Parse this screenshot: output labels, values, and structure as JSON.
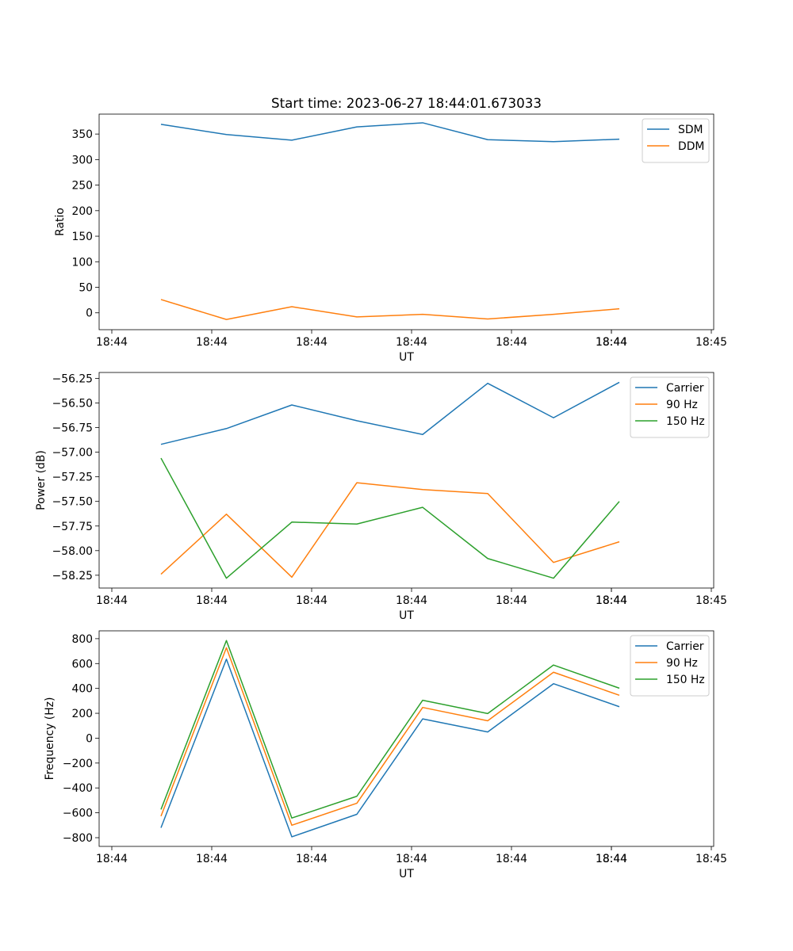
{
  "chart_data": [
    {
      "type": "line",
      "title": "Start time: 2023-06-27 18:44:01.673033",
      "xlabel": "UT",
      "ylabel": "Ratio",
      "x_tick_labels": [
        "18:44",
        "18:44",
        "18:44",
        "18:44",
        "18:44",
        "18:44",
        "18:44"
      ],
      "x_last_tick_label": "18:45",
      "y_ticks": [
        "0",
        "50",
        "100",
        "150",
        "200",
        "250",
        "300",
        "350"
      ],
      "y_tick_values": [
        0,
        50,
        100,
        150,
        200,
        250,
        300,
        350
      ],
      "ylim": [
        -33,
        389
      ],
      "legend": "top-right",
      "grid": false,
      "series": [
        {
          "name": "SDM",
          "color": "#1f77b4",
          "values": [
            369,
            349,
            338,
            364,
            372,
            339,
            335,
            340
          ]
        },
        {
          "name": "DDM",
          "color": "#ff7f0e",
          "values": [
            26,
            -13,
            12,
            -8,
            -3,
            -12,
            -3,
            8
          ]
        }
      ]
    },
    {
      "type": "line",
      "title": "",
      "xlabel": "UT",
      "ylabel": "Power (dB)",
      "x_tick_labels": [
        "18:44",
        "18:44",
        "18:44",
        "18:44",
        "18:44",
        "18:44",
        "18:44"
      ],
      "x_last_tick_label": "18:45",
      "y_ticks": [
        "−58.25",
        "−58.00",
        "−57.75",
        "−57.50",
        "−57.25",
        "−57.00",
        "−56.75",
        "−56.50",
        "−56.25"
      ],
      "y_tick_values": [
        -58.25,
        -58.0,
        -57.75,
        -57.5,
        -57.25,
        -57.0,
        -56.75,
        -56.5,
        -56.25
      ],
      "ylim": [
        -58.38,
        -56.19
      ],
      "legend": "top-right",
      "grid": false,
      "series": [
        {
          "name": "Carrier",
          "color": "#1f77b4",
          "values": [
            -56.92,
            -56.76,
            -56.52,
            -56.68,
            -56.82,
            -56.3,
            -56.65,
            -56.29
          ]
        },
        {
          "name": "90 Hz",
          "color": "#ff7f0e",
          "values": [
            -58.24,
            -57.63,
            -58.27,
            -57.31,
            -57.38,
            -57.42,
            -58.12,
            -57.91
          ]
        },
        {
          "name": "150 Hz",
          "color": "#2ca02c",
          "values": [
            -57.06,
            -58.28,
            -57.71,
            -57.73,
            -57.56,
            -58.08,
            -58.28,
            -57.5
          ]
        }
      ]
    },
    {
      "type": "line",
      "title": "",
      "xlabel": "UT",
      "ylabel": "Frequency (Hz)",
      "x_tick_labels": [
        "18:44",
        "18:44",
        "18:44",
        "18:44",
        "18:44",
        "18:44",
        "18:44"
      ],
      "x_last_tick_label": "18:45",
      "y_ticks": [
        "−800",
        "−600",
        "−400",
        "−200",
        "0",
        "200",
        "400",
        "600",
        "800"
      ],
      "y_tick_values": [
        -800,
        -600,
        -400,
        -200,
        0,
        200,
        400,
        600,
        800
      ],
      "ylim": [
        -870,
        863
      ],
      "legend": "top-right",
      "grid": false,
      "series": [
        {
          "name": "Carrier",
          "color": "#1f77b4",
          "values": [
            -720,
            635,
            -793,
            -612,
            155,
            50,
            438,
            253
          ]
        },
        {
          "name": "90 Hz",
          "color": "#ff7f0e",
          "values": [
            -627,
            727,
            -700,
            -523,
            247,
            140,
            530,
            345
          ]
        },
        {
          "name": "150 Hz",
          "color": "#2ca02c",
          "values": [
            -573,
            785,
            -642,
            -467,
            305,
            198,
            588,
            402
          ]
        }
      ]
    }
  ]
}
